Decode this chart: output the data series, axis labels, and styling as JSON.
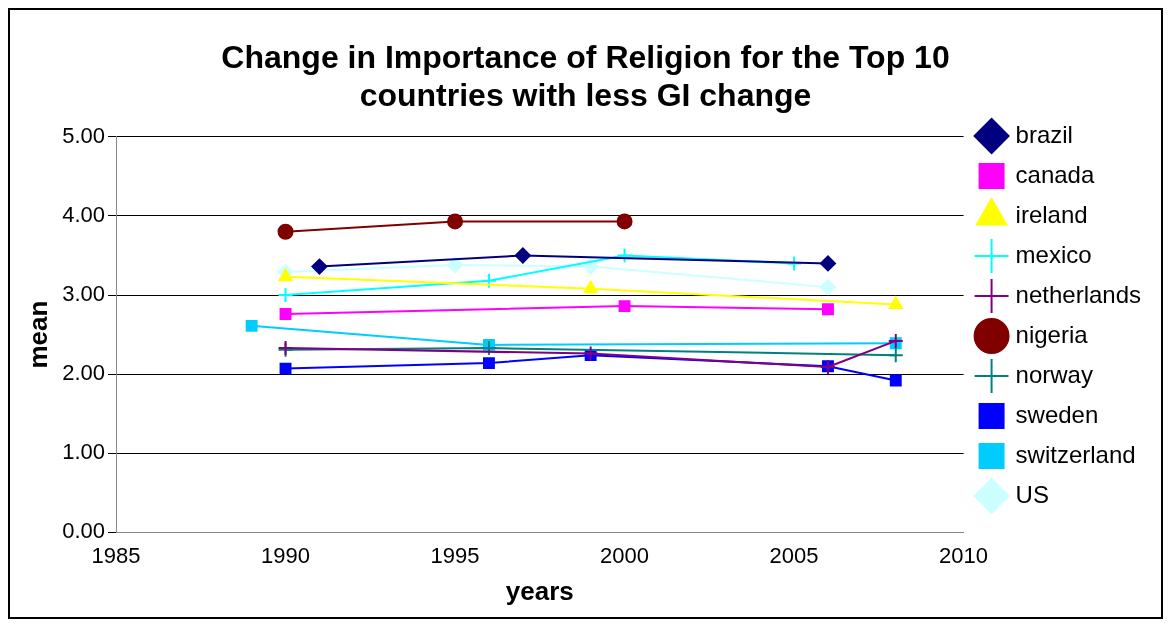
{
  "chart_data": {
    "type": "line",
    "title": [
      "Change in Importance of Religion for the Top 10",
      "countries with less GI change"
    ],
    "xlabel": "years",
    "ylabel": "mean",
    "xlim": [
      1985,
      2010
    ],
    "xticks": [
      1985,
      1990,
      1995,
      2000,
      2005,
      2010
    ],
    "ylim": [
      0,
      5
    ],
    "yticks": [
      {
        "value": 0,
        "label": "0.00"
      },
      {
        "value": 1,
        "label": "1.00"
      },
      {
        "value": 2,
        "label": "2.00"
      },
      {
        "value": 3,
        "label": "3.00"
      },
      {
        "value": 4,
        "label": "4.00"
      },
      {
        "value": 5,
        "label": "5.00"
      }
    ],
    "grid": "y",
    "legend": "right",
    "series": [
      {
        "name": "brazil",
        "color": "#000080",
        "marker": "diamond",
        "x": [
          1991,
          1997,
          2006
        ],
        "values": [
          3.36,
          3.5,
          3.4
        ]
      },
      {
        "name": "canada",
        "color": "#ff00ff",
        "marker": "square",
        "x": [
          1990,
          2000,
          2006
        ],
        "values": [
          2.76,
          2.86,
          2.82
        ]
      },
      {
        "name": "ireland",
        "color": "#ffff00",
        "marker": "triangle",
        "x": [
          1990,
          1999,
          2008
        ],
        "values": [
          3.23,
          3.08,
          2.88
        ]
      },
      {
        "name": "mexico",
        "color": "#00ffff",
        "marker": "cross",
        "x": [
          1990,
          1996,
          2000,
          2005
        ],
        "values": [
          3.0,
          3.18,
          3.5,
          3.4
        ]
      },
      {
        "name": "netherlands",
        "color": "#800080",
        "marker": "cross",
        "x": [
          1990,
          1999,
          2006,
          2008
        ],
        "values": [
          2.33,
          2.26,
          2.09,
          2.42
        ]
      },
      {
        "name": "nigeria",
        "color": "#800000",
        "marker": "circle",
        "x": [
          1990,
          1995,
          2000
        ],
        "values": [
          3.8,
          3.93,
          3.93
        ]
      },
      {
        "name": "norway",
        "color": "#008080",
        "marker": "cross",
        "x": [
          1990,
          1996,
          2008
        ],
        "values": [
          2.31,
          2.33,
          2.24
        ]
      },
      {
        "name": "sweden",
        "color": "#0000ff",
        "marker": "square",
        "x": [
          1990,
          1996,
          1999,
          2006,
          2008
        ],
        "values": [
          2.07,
          2.14,
          2.24,
          2.1,
          1.92
        ]
      },
      {
        "name": "switzerland",
        "color": "#00ccff",
        "marker": "square",
        "x": [
          1989,
          1996,
          2008
        ],
        "values": [
          2.61,
          2.37,
          2.39
        ]
      },
      {
        "name": "US",
        "color": "#ccffff",
        "marker": "diamond",
        "x": [
          1990,
          1995,
          1999,
          2006
        ],
        "values": [
          3.29,
          3.38,
          3.36,
          3.1
        ]
      }
    ]
  }
}
